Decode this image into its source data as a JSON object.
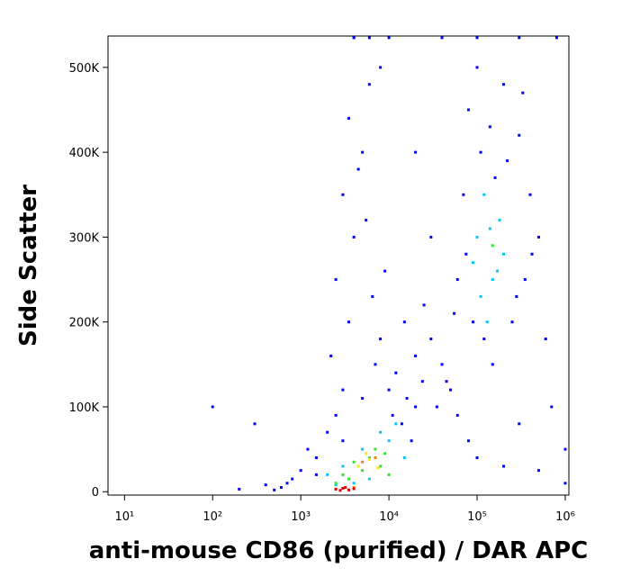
{
  "chart_data": {
    "type": "scatter",
    "x_label": "anti-mouse CD86 (purified) / DAR APC",
    "y_label": "Side Scatter",
    "xscale": "log",
    "xlim": [
      6.5,
      1100000
    ],
    "xticks": [
      {
        "value": 10,
        "label": "10¹"
      },
      {
        "value": 100,
        "label": "10²"
      },
      {
        "value": 1000,
        "label": "10³"
      },
      {
        "value": 10000,
        "label": "10⁴"
      },
      {
        "value": 100000,
        "label": "10⁵"
      },
      {
        "value": 1000000,
        "label": "10⁶"
      }
    ],
    "ylim": [
      -4000,
      537000
    ],
    "yticks": [
      0,
      {
        "value": 100000,
        "label": "100K"
      },
      {
        "value": 200000,
        "label": "200K"
      },
      {
        "value": 300000,
        "label": "300K"
      },
      {
        "value": 400000,
        "label": "400K"
      },
      {
        "value": 500000,
        "label": "500K"
      }
    ],
    "series": [
      {
        "color": "#0000ff",
        "x": [
          200,
          400,
          600,
          800,
          1000,
          1200,
          1500,
          2000,
          2500,
          3000,
          3500,
          4000,
          5000,
          6000,
          3000,
          2500,
          7000,
          8000,
          10000,
          12000,
          15000,
          20000,
          25000,
          30000,
          40000,
          50000,
          60000,
          80000,
          100000,
          200000,
          500000,
          1000000,
          300000,
          150000,
          70000,
          80000,
          100000,
          200000,
          300000,
          400000,
          500000,
          60000,
          90000,
          120000,
          250000,
          350000,
          30000,
          20000,
          5000,
          3000,
          1500,
          700,
          500,
          8000,
          4000,
          3500,
          9000,
          100,
          300,
          20000,
          1000000,
          700000,
          600000,
          4000,
          6000,
          10000,
          40000,
          100000,
          300000,
          800000,
          5500,
          4500,
          2200,
          6500,
          11000,
          16000,
          45000,
          55000,
          75000,
          110000,
          140000,
          160000,
          220000,
          280000,
          330000,
          420000,
          14000,
          18000,
          24000,
          35000
        ],
        "values": [
          3000,
          8000,
          5000,
          15000,
          25000,
          50000,
          40000,
          70000,
          90000,
          120000,
          200000,
          300000,
          400000,
          480000,
          350000,
          250000,
          150000,
          180000,
          120000,
          140000,
          200000,
          160000,
          220000,
          180000,
          150000,
          120000,
          90000,
          60000,
          40000,
          30000,
          25000,
          50000,
          80000,
          150000,
          350000,
          450000,
          500000,
          480000,
          420000,
          350000,
          300000,
          250000,
          200000,
          180000,
          200000,
          250000,
          300000,
          100000,
          110000,
          60000,
          20000,
          10000,
          2000,
          500000,
          535000,
          440000,
          260000,
          100000,
          80000,
          400000,
          10000,
          100000,
          180000,
          535000,
          535000,
          535000,
          535000,
          535000,
          535000,
          535000,
          320000,
          380000,
          160000,
          230000,
          90000,
          110000,
          130000,
          210000,
          280000,
          400000,
          430000,
          370000,
          390000,
          230000,
          470000,
          280000,
          80000,
          60000,
          130000,
          100000
        ]
      },
      {
        "color": "#00c8ff",
        "x": [
          2000,
          3000,
          5000,
          8000,
          10000,
          15000,
          100000,
          150000,
          120000,
          200000,
          130000,
          180000,
          90000,
          4000,
          6000,
          110000,
          170000,
          140000,
          12000,
          2500
        ],
        "values": [
          20000,
          30000,
          50000,
          70000,
          60000,
          40000,
          300000,
          250000,
          350000,
          280000,
          200000,
          320000,
          270000,
          10000,
          15000,
          230000,
          260000,
          310000,
          80000,
          8000
        ]
      },
      {
        "color": "#2ee82e",
        "x": [
          3000,
          4000,
          6000,
          8000,
          5000,
          10000,
          2500,
          150000,
          7000,
          3500,
          9000
        ],
        "values": [
          20000,
          35000,
          40000,
          30000,
          25000,
          20000,
          10000,
          290000,
          50000,
          15000,
          45000
        ]
      },
      {
        "color": "#ffe800",
        "x": [
          4500,
          6000,
          7500,
          5500
        ],
        "values": [
          30000,
          38000,
          28000,
          45000
        ]
      },
      {
        "color": "#ff8000",
        "x": [
          5000,
          7000,
          4000
        ],
        "values": [
          35000,
          40000,
          5000
        ]
      },
      {
        "color": "#e00000",
        "x": [
          2500,
          3000,
          3500,
          4000,
          2800,
          3200
        ],
        "values": [
          3000,
          4000,
          2000,
          3500,
          1500,
          5000
        ]
      }
    ]
  }
}
